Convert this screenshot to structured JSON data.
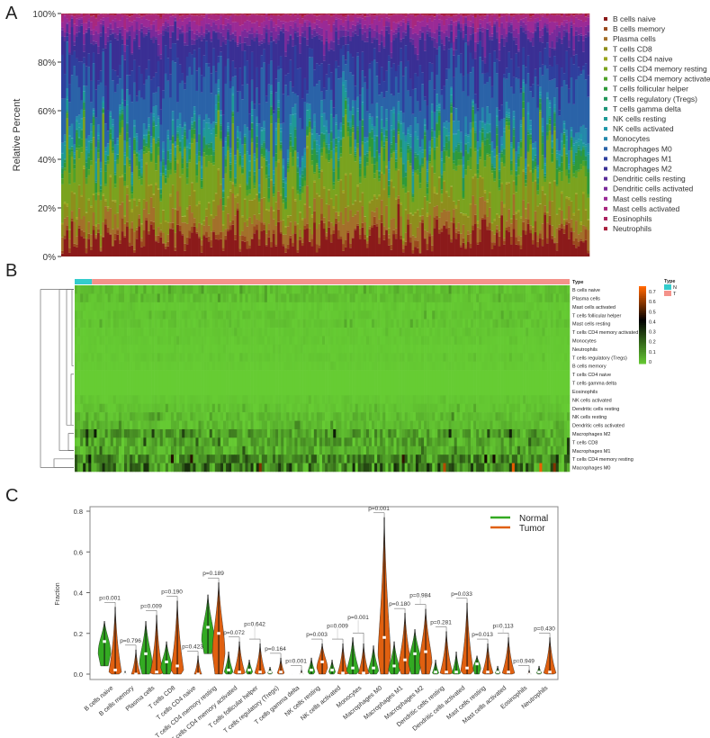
{
  "panels": {
    "a": "A",
    "b": "B",
    "c": "C"
  },
  "chart_data": [
    {
      "type": "bar",
      "stacked": true,
      "ylabel": "Relative Percent",
      "yticks": [
        "0%",
        "20%",
        "40%",
        "60%",
        "80%",
        "100%"
      ],
      "ylim": [
        0,
        1
      ],
      "legend_position": "right",
      "series": [
        {
          "name": "B cells naive",
          "color": "#8b1a1a",
          "mean": 0.08
        },
        {
          "name": "B cells memory",
          "color": "#9a4a1e",
          "mean": 0.02
        },
        {
          "name": "Plasma cells",
          "color": "#a3702a",
          "mean": 0.05
        },
        {
          "name": "T cells CD8",
          "color": "#8e8e1c",
          "mean": 0.09
        },
        {
          "name": "T cells CD4 naive",
          "color": "#9aa51f",
          "mean": 0.005
        },
        {
          "name": "T cells CD4 memory resting",
          "color": "#7aa31f",
          "mean": 0.15
        },
        {
          "name": "T cells CD4 memory activated",
          "color": "#4fa22a",
          "mean": 0.02
        },
        {
          "name": "T cells follicular helper",
          "color": "#2e9a3a",
          "mean": 0.03
        },
        {
          "name": "T cells regulatory (Tregs)",
          "color": "#23955a",
          "mean": 0.02
        },
        {
          "name": "T cells gamma delta",
          "color": "#1f9477",
          "mean": 0.005
        },
        {
          "name": "NK cells resting",
          "color": "#1f9a96",
          "mean": 0.04
        },
        {
          "name": "NK cells activated",
          "color": "#1f96a8",
          "mean": 0.01
        },
        {
          "name": "Monocytes",
          "color": "#2588ab",
          "mean": 0.03
        },
        {
          "name": "Macrophages M0",
          "color": "#2a63a8",
          "mean": 0.18
        },
        {
          "name": "Macrophages M1",
          "color": "#2f3f9e",
          "mean": 0.07
        },
        {
          "name": "Macrophages M2",
          "color": "#3a2f94",
          "mean": 0.12
        },
        {
          "name": "Dendritic cells resting",
          "color": "#5a2d98",
          "mean": 0.02
        },
        {
          "name": "Dendritic cells activated",
          "color": "#7a2a9a",
          "mean": 0.03
        },
        {
          "name": "Mast cells resting",
          "color": "#9a2a96",
          "mean": 0.03
        },
        {
          "name": "Mast cells activated",
          "color": "#a8287e",
          "mean": 0.02
        },
        {
          "name": "Eosinophils",
          "color": "#aa2460",
          "mean": 0.003
        },
        {
          "name": "Neutrophils",
          "color": "#a8203c",
          "mean": 0.005
        }
      ]
    },
    {
      "type": "heatmap",
      "annotation_label": "Type",
      "legend_title": "Type",
      "groups": [
        {
          "name": "N",
          "color": "#33cccc",
          "share": 0.035
        },
        {
          "name": "T",
          "color": "#f4928a",
          "share": 0.965
        }
      ],
      "colorbar": {
        "ticks": [
          "0",
          "0.1",
          "0.2",
          "0.3",
          "0.4",
          "0.5",
          "0.6",
          "0.7"
        ],
        "low": "#66cc33",
        "mid": "#000000",
        "high": "#ff6600",
        "range": [
          0,
          0.7
        ]
      },
      "rows": [
        {
          "name": "B cells naive",
          "mean": 0.03
        },
        {
          "name": "Plasma cells",
          "mean": 0.03
        },
        {
          "name": "Mast cells activated",
          "mean": 0.01
        },
        {
          "name": "T cells follicular helper",
          "mean": 0.02
        },
        {
          "name": "Mast cells resting",
          "mean": 0.02
        },
        {
          "name": "T cells CD4 memory activated",
          "mean": 0.01
        },
        {
          "name": "Monocytes",
          "mean": 0.01
        },
        {
          "name": "Neutrophils",
          "mean": 0.005
        },
        {
          "name": "T cells regulatory (Tregs)",
          "mean": 0.01
        },
        {
          "name": "B cells memory",
          "mean": 0.005
        },
        {
          "name": "T cells CD4 naive",
          "mean": 0.0
        },
        {
          "name": "T cells gamma delta",
          "mean": 0.0
        },
        {
          "name": "Eosinophils",
          "mean": 0.0
        },
        {
          "name": "NK cells activated",
          "mean": 0.01
        },
        {
          "name": "Dendritic cells resting",
          "mean": 0.02
        },
        {
          "name": "NK cells resting",
          "mean": 0.04
        },
        {
          "name": "Dendritic cells activated",
          "mean": 0.04
        },
        {
          "name": "Macrophages M2",
          "mean": 0.1
        },
        {
          "name": "T cells CD8",
          "mean": 0.09
        },
        {
          "name": "Macrophages M1",
          "mean": 0.08
        },
        {
          "name": "T cells CD4 memory resting",
          "mean": 0.15
        },
        {
          "name": "Macrophages M0",
          "mean": 0.2
        }
      ]
    },
    {
      "type": "violin",
      "ylabel": "Fraction",
      "ylim": [
        0,
        0.8
      ],
      "yticks": [
        "0.0",
        "0.2",
        "0.4",
        "0.6",
        "0.8"
      ],
      "legend_position": "top-right",
      "legend": [
        {
          "name": "Normal",
          "color": "#33aa22"
        },
        {
          "name": "Tumor",
          "color": "#e06010"
        }
      ],
      "categories": [
        {
          "name": "B cells naive",
          "p": "p=0.001",
          "normal": {
            "min": 0.04,
            "median": 0.16,
            "max": 0.26
          },
          "tumor": {
            "min": 0,
            "median": 0.02,
            "max": 0.33
          }
        },
        {
          "name": "B cells memory",
          "p": "p=0.796",
          "normal": {
            "min": 0,
            "median": 0,
            "max": 0.015
          },
          "tumor": {
            "min": 0,
            "median": 0,
            "max": 0.12
          }
        },
        {
          "name": "Plasma cells",
          "p": "p=0.009",
          "normal": {
            "min": 0,
            "median": 0.1,
            "max": 0.26
          },
          "tumor": {
            "min": 0,
            "median": 0.01,
            "max": 0.29
          }
        },
        {
          "name": "T cells CD8",
          "p": "p=0.190",
          "normal": {
            "min": 0,
            "median": 0.06,
            "max": 0.16
          },
          "tumor": {
            "min": 0,
            "median": 0.04,
            "max": 0.36
          }
        },
        {
          "name": "T cells CD4 naive",
          "p": "p=0.423",
          "normal": {
            "min": 0,
            "median": 0,
            "max": 0.003
          },
          "tumor": {
            "min": 0,
            "median": 0,
            "max": 0.09
          }
        },
        {
          "name": "T cells CD4 memory resting",
          "p": "p=0.189",
          "normal": {
            "min": 0.1,
            "median": 0.23,
            "max": 0.39
          },
          "tumor": {
            "min": 0,
            "median": 0.2,
            "max": 0.45
          }
        },
        {
          "name": "T cells CD4 memory activated",
          "p": "p=0.072",
          "normal": {
            "min": 0,
            "median": 0.02,
            "max": 0.11
          },
          "tumor": {
            "min": 0,
            "median": 0.01,
            "max": 0.16
          }
        },
        {
          "name": "T cells follicular helper",
          "p": "p=0.642",
          "normal": {
            "min": 0,
            "median": 0.02,
            "max": 0.07
          },
          "tumor": {
            "min": 0,
            "median": 0.01,
            "max": 0.15
          }
        },
        {
          "name": "T cells regulatory (Tregs)",
          "p": "p=0.164",
          "normal": {
            "min": 0,
            "median": 0.01,
            "max": 0.035
          },
          "tumor": {
            "min": 0,
            "median": 0.01,
            "max": 0.08
          }
        },
        {
          "name": "T cells gamma delta",
          "p": "p=0.001",
          "normal": {
            "min": 0,
            "median": 0,
            "max": 0.003
          },
          "tumor": {
            "min": 0,
            "median": 0,
            "max": 0.02
          }
        },
        {
          "name": "NK cells resting",
          "p": "p=0.003",
          "normal": {
            "min": 0,
            "median": 0.02,
            "max": 0.08
          },
          "tumor": {
            "min": 0,
            "median": 0.06,
            "max": 0.15
          }
        },
        {
          "name": "NK cells activated",
          "p": "p=0.009",
          "normal": {
            "min": 0,
            "median": 0.02,
            "max": 0.07
          },
          "tumor": {
            "min": 0,
            "median": 0.005,
            "max": 0.15
          }
        },
        {
          "name": "Monocytes",
          "p": "p=0.001",
          "normal": {
            "min": 0,
            "median": 0.03,
            "max": 0.18
          },
          "tumor": {
            "min": 0,
            "median": 0.005,
            "max": 0.15
          }
        },
        {
          "name": "Macrophages M0",
          "p": "p=0.001",
          "normal": {
            "min": 0,
            "median": 0.03,
            "max": 0.14
          },
          "tumor": {
            "min": 0,
            "median": 0.18,
            "max": 0.77
          }
        },
        {
          "name": "Macrophages M1",
          "p": "p=0.180",
          "normal": {
            "min": 0,
            "median": 0.04,
            "max": 0.16
          },
          "tumor": {
            "min": 0,
            "median": 0.07,
            "max": 0.3
          }
        },
        {
          "name": "Macrophages M2",
          "p": "p=0.984",
          "normal": {
            "min": 0,
            "median": 0.1,
            "max": 0.22
          },
          "tumor": {
            "min": 0,
            "median": 0.11,
            "max": 0.32
          }
        },
        {
          "name": "Dendritic cells resting",
          "p": "p=0.281",
          "normal": {
            "min": 0,
            "median": 0.01,
            "max": 0.07
          },
          "tumor": {
            "min": 0,
            "median": 0.01,
            "max": 0.21
          }
        },
        {
          "name": "Dendritic cells activated",
          "p": "p=0.033",
          "normal": {
            "min": 0,
            "median": 0.01,
            "max": 0.11
          },
          "tumor": {
            "min": 0,
            "median": 0.03,
            "max": 0.35
          }
        },
        {
          "name": "Mast cells resting",
          "p": "p=0.013",
          "normal": {
            "min": 0,
            "median": 0.05,
            "max": 0.09
          },
          "tumor": {
            "min": 0,
            "median": 0.01,
            "max": 0.15
          }
        },
        {
          "name": "Mast cells activated",
          "p": "p=0.113",
          "normal": {
            "min": 0,
            "median": 0.01,
            "max": 0.04
          },
          "tumor": {
            "min": 0,
            "median": 0.01,
            "max": 0.18
          }
        },
        {
          "name": "Eosinophils",
          "p": "p=0.949",
          "normal": {
            "min": 0,
            "median": 0,
            "max": 0.003
          },
          "tumor": {
            "min": 0,
            "median": 0,
            "max": 0.02
          }
        },
        {
          "name": "Neutrophils",
          "p": "p=0.430",
          "normal": {
            "min": 0,
            "median": 0.01,
            "max": 0.04
          },
          "tumor": {
            "min": 0,
            "median": 0.01,
            "max": 0.18
          }
        }
      ]
    }
  ]
}
